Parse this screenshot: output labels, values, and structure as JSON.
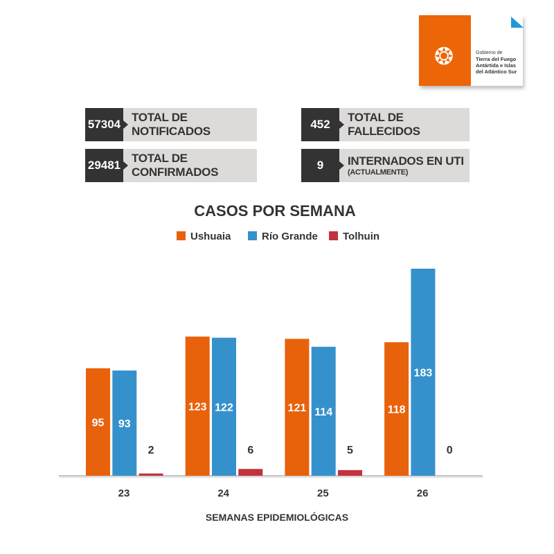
{
  "logo": {
    "line1": "Gobierno de",
    "line2": "Tierra del Fuego",
    "line3": "Antártida e Islas",
    "line4": "del Atlántico Sur"
  },
  "stats": [
    {
      "value": "57304",
      "label": "TOTAL DE NOTIFICADOS"
    },
    {
      "value": "452",
      "label": "TOTAL DE FALLECIDOS"
    },
    {
      "value": "29481",
      "label": "TOTAL DE CONFIRMADOS"
    },
    {
      "value": "9",
      "label": "INTERNADOS EN UTI",
      "sublabel": "(ACTUALMENTE)"
    }
  ],
  "chart_data": {
    "type": "bar",
    "title": "CASOS POR SEMANA",
    "xlabel": "SEMANAS EPIDEMIOLÓGICAS",
    "ylabel": "",
    "categories": [
      "23",
      "24",
      "25",
      "26"
    ],
    "series": [
      {
        "name": "Ushuaia",
        "color": "#e8620c",
        "values": [
          95,
          123,
          121,
          118
        ]
      },
      {
        "name": "Río Grande",
        "color": "#3591cc",
        "values": [
          93,
          122,
          114,
          183
        ]
      },
      {
        "name": "Tolhuin",
        "color": "#c2323f",
        "values": [
          2,
          6,
          5,
          0
        ]
      }
    ],
    "ylim": [
      0,
      183
    ],
    "legend": "top",
    "grid": false
  }
}
